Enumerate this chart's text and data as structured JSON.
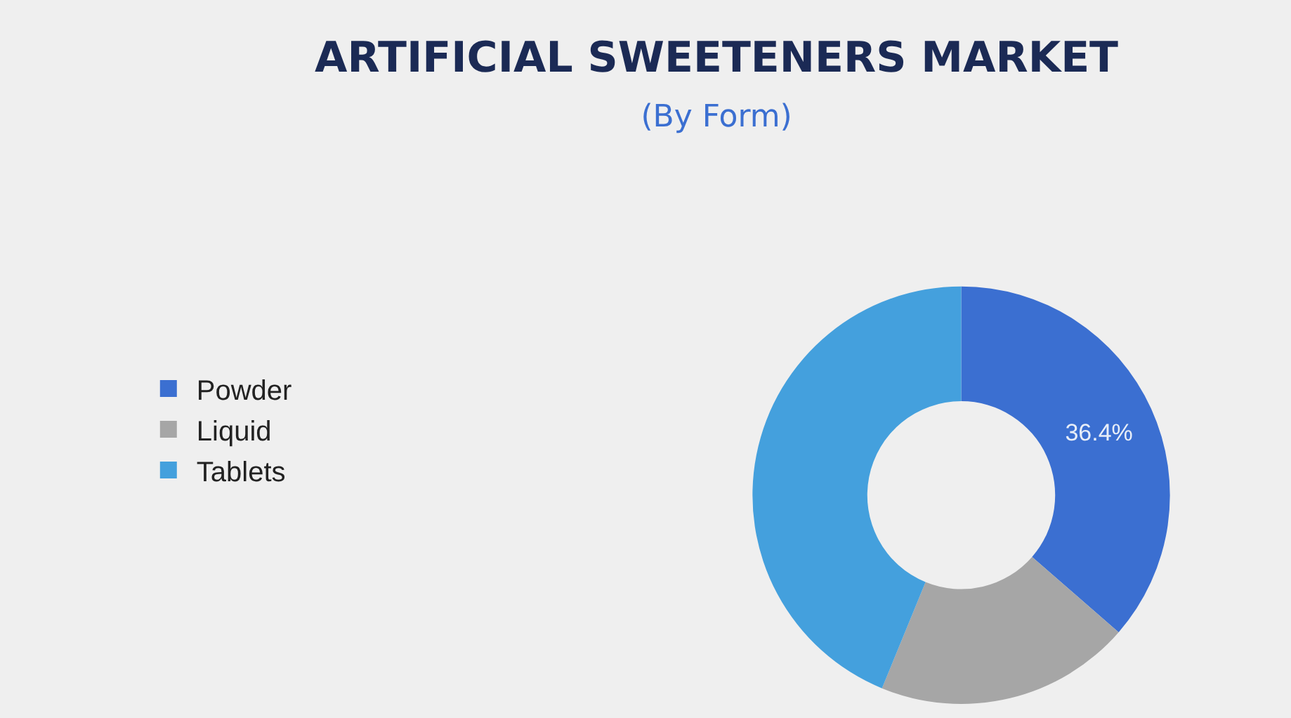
{
  "chart_data": {
    "type": "donut",
    "title": "ARTIFICIAL SWEETENERS MARKET",
    "subtitle": "(By Form)",
    "categories": [
      "Powder",
      "Liquid",
      "Tablets"
    ],
    "values": [
      36.4,
      19.8,
      43.8
    ],
    "colors": [
      "#3b6fd1",
      "#a6a6a6",
      "#44a0dd"
    ],
    "value_labels": [
      "36.4%",
      null,
      null
    ],
    "legend": "left"
  }
}
